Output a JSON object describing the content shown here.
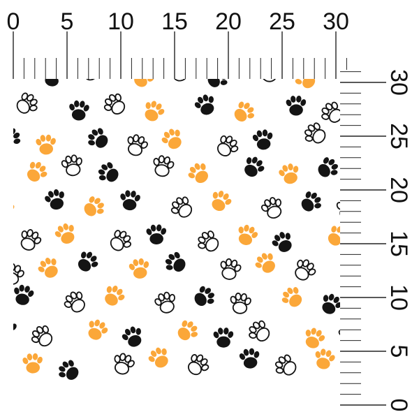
{
  "rulers": {
    "top": {
      "unit": "cm",
      "labels": [
        "0",
        "5",
        "10",
        "15",
        "20",
        "25",
        "30"
      ]
    },
    "right": {
      "unit": "cm",
      "labels": [
        "30",
        "25",
        "20",
        "15",
        "10",
        "5",
        "0"
      ]
    }
  },
  "fabric": {
    "pattern": "paw-prints",
    "colors": {
      "orange": "#FBA739",
      "black": "#141414",
      "outline": "#141414",
      "background": "#FFFFFF"
    },
    "paw_styles": [
      "orange",
      "black",
      "outline"
    ]
  }
}
